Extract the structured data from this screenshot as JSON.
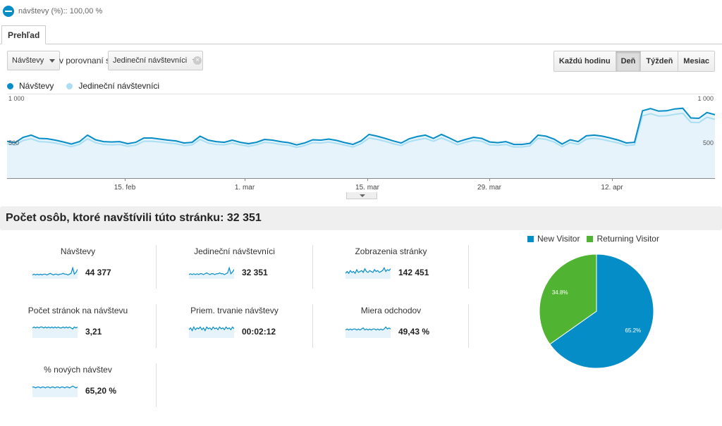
{
  "segment": {
    "text": "návštevy (%):: 100,00 %",
    "color": "#058dc7",
    "icon": "segment-icon"
  },
  "tabs": [
    {
      "label": "Prehľad"
    }
  ],
  "controls": {
    "metric1": "Návštevy",
    "compare_label": "v porovnaní s",
    "metric2": "Jedineční návštevníci",
    "granularity": [
      {
        "label": "Každú hodinu",
        "active": false
      },
      {
        "label": "Deň",
        "active": true
      },
      {
        "label": "Týždeň",
        "active": false
      },
      {
        "label": "Mesiac",
        "active": false
      }
    ]
  },
  "colors": {
    "primary": "#058dc7",
    "secondary": "#aadff3",
    "area": "#e6f3fa",
    "new": "#058dc7",
    "returning": "#50b432"
  },
  "chart_data": [
    {
      "type": "line",
      "series": [
        {
          "name": "Návštevy",
          "values": [
            515,
            495,
            570,
            600,
            555,
            550,
            530,
            505,
            475,
            510,
            600,
            535,
            510,
            505,
            510,
            480,
            500,
            560,
            560,
            545,
            530,
            520,
            490,
            500,
            585,
            530,
            510,
            500,
            530,
            500,
            480,
            500,
            540,
            530,
            510,
            495,
            465,
            490,
            535,
            530,
            545,
            525,
            495,
            470,
            520,
            610,
            585,
            555,
            520,
            490,
            550,
            580,
            600,
            555,
            610,
            560,
            505,
            540,
            570,
            555,
            505,
            495,
            510,
            470,
            470,
            485,
            600,
            585,
            545,
            475,
            535,
            510,
            590,
            600,
            585,
            560,
            530,
            490,
            500,
            940,
            970,
            935,
            940,
            965,
            975,
            840,
            835,
            915,
            885
          ]
        },
        {
          "name": "Jedineční návštevníci",
          "values": [
            480,
            460,
            525,
            550,
            510,
            505,
            490,
            465,
            440,
            470,
            550,
            495,
            470,
            465,
            470,
            445,
            460,
            515,
            515,
            505,
            490,
            480,
            455,
            465,
            540,
            490,
            470,
            465,
            490,
            465,
            445,
            465,
            500,
            490,
            470,
            460,
            430,
            455,
            495,
            490,
            505,
            485,
            460,
            435,
            480,
            560,
            540,
            515,
            480,
            455,
            510,
            535,
            555,
            515,
            560,
            515,
            465,
            500,
            525,
            515,
            465,
            460,
            470,
            435,
            435,
            450,
            555,
            540,
            505,
            440,
            495,
            470,
            545,
            555,
            540,
            515,
            490,
            455,
            465,
            870,
            900,
            865,
            870,
            890,
            905,
            780,
            775,
            850,
            820
          ]
        }
      ],
      "x_ticks": [
        "15. feb",
        "1. mar",
        "15. mar",
        "29. mar",
        "12. apr"
      ],
      "y_ticks": [
        "1 000",
        "500"
      ],
      "ylim": [
        0,
        1100
      ]
    },
    {
      "type": "pie",
      "legend": [
        "New Visitor",
        "Returning Visitor"
      ],
      "values": [
        65.2,
        34.8
      ],
      "labels": [
        "65.2%",
        "34.8%"
      ]
    }
  ],
  "summary": {
    "title": "Počet osôb, ktoré navštívili túto stránku: 32 351"
  },
  "metrics": [
    {
      "label": "Návštevy",
      "value": "44 377",
      "spark": [
        5,
        6,
        5,
        6,
        5,
        6,
        5,
        6,
        6,
        5,
        6,
        7,
        6,
        5,
        6,
        6,
        5,
        6,
        6,
        7,
        6,
        6,
        5,
        6,
        7,
        14,
        6,
        8,
        12
      ]
    },
    {
      "label": "Jedineční návštevníci",
      "value": "32 351",
      "spark": [
        5,
        6,
        5,
        6,
        5,
        6,
        5,
        6,
        6,
        5,
        6,
        7,
        6,
        5,
        6,
        6,
        5,
        6,
        6,
        7,
        6,
        6,
        5,
        6,
        7,
        13,
        6,
        8,
        11
      ]
    },
    {
      "label": "Zobrazenia stránky",
      "value": "142 451",
      "spark": [
        6,
        8,
        6,
        9,
        7,
        8,
        6,
        10,
        7,
        8,
        9,
        7,
        11,
        8,
        7,
        9,
        8,
        7,
        10,
        8,
        9,
        7,
        8,
        9,
        12,
        8,
        10,
        9,
        11
      ]
    },
    {
      "label": "Počet stránok na návštevu",
      "value": "3,21",
      "spark": [
        10,
        11,
        10,
        11,
        10,
        11,
        11,
        10,
        11,
        10,
        11,
        10,
        11,
        10,
        11,
        10,
        11,
        10,
        10,
        11,
        10,
        11,
        10,
        11,
        10,
        9,
        11,
        10,
        11
      ]
    },
    {
      "label": "Priem. trvanie návštevy",
      "value": "00:02:12",
      "spark": [
        9,
        11,
        8,
        12,
        9,
        11,
        10,
        12,
        9,
        11,
        8,
        12,
        10,
        11,
        9,
        12,
        10,
        11,
        9,
        12,
        10,
        11,
        9,
        12,
        10,
        11,
        9,
        12,
        10
      ]
    },
    {
      "label": "Miera odchodov",
      "value": "49,43 %",
      "spark": [
        8,
        9,
        8,
        9,
        8,
        9,
        9,
        8,
        9,
        8,
        9,
        10,
        8,
        9,
        8,
        9,
        8,
        9,
        9,
        8,
        9,
        8,
        9,
        8,
        9,
        11,
        9,
        10,
        9
      ]
    },
    {
      "label": "% nových návštev",
      "value": "65,20 %",
      "spark": [
        11,
        11,
        10,
        11,
        11,
        10,
        11,
        11,
        10,
        11,
        11,
        10,
        11,
        11,
        10,
        11,
        11,
        10,
        11,
        11,
        10,
        11,
        11,
        10,
        11,
        12,
        11,
        10,
        11
      ]
    }
  ]
}
